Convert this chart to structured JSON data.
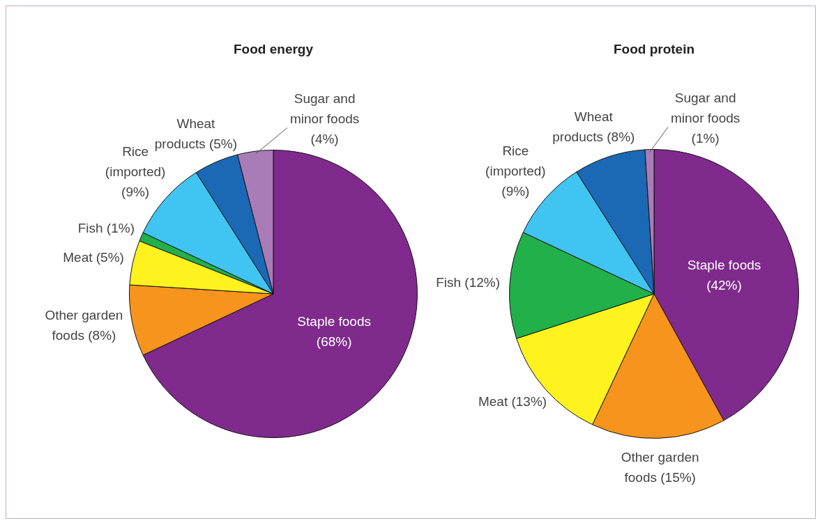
{
  "chart_data": [
    {
      "type": "pie",
      "title": "Food energy",
      "categories": [
        "Staple foods",
        "Other garden foods",
        "Meat",
        "Fish",
        "Rice (imported)",
        "Wheat products",
        "Sugar and minor foods"
      ],
      "values": [
        68,
        8,
        5,
        1,
        9,
        5,
        4
      ],
      "value_labels": [
        "(68%)",
        "(8%)",
        "(5%)",
        "(1%)",
        "(9%)",
        "(5%)",
        "(4%)"
      ],
      "colors": [
        "#7f2a8c",
        "#f7941d",
        "#fff21f",
        "#22b04b",
        "#40c4f2",
        "#1b69b4",
        "#a97cb8"
      ]
    },
    {
      "type": "pie",
      "title": "Food protein",
      "categories": [
        "Staple foods",
        "Other garden foods",
        "Meat",
        "Fish",
        "Rice (imported)",
        "Wheat products",
        "Sugar and minor foods"
      ],
      "values": [
        42,
        15,
        13,
        12,
        9,
        8,
        1
      ],
      "value_labels": [
        "(42%)",
        "(15%)",
        "(13%)",
        "(12%)",
        "(9%)",
        "(8%)",
        "(1%)"
      ],
      "colors": [
        "#7f2a8c",
        "#f7941d",
        "#fff21f",
        "#22b04b",
        "#40c4f2",
        "#1b69b4",
        "#a97cb8"
      ]
    }
  ]
}
